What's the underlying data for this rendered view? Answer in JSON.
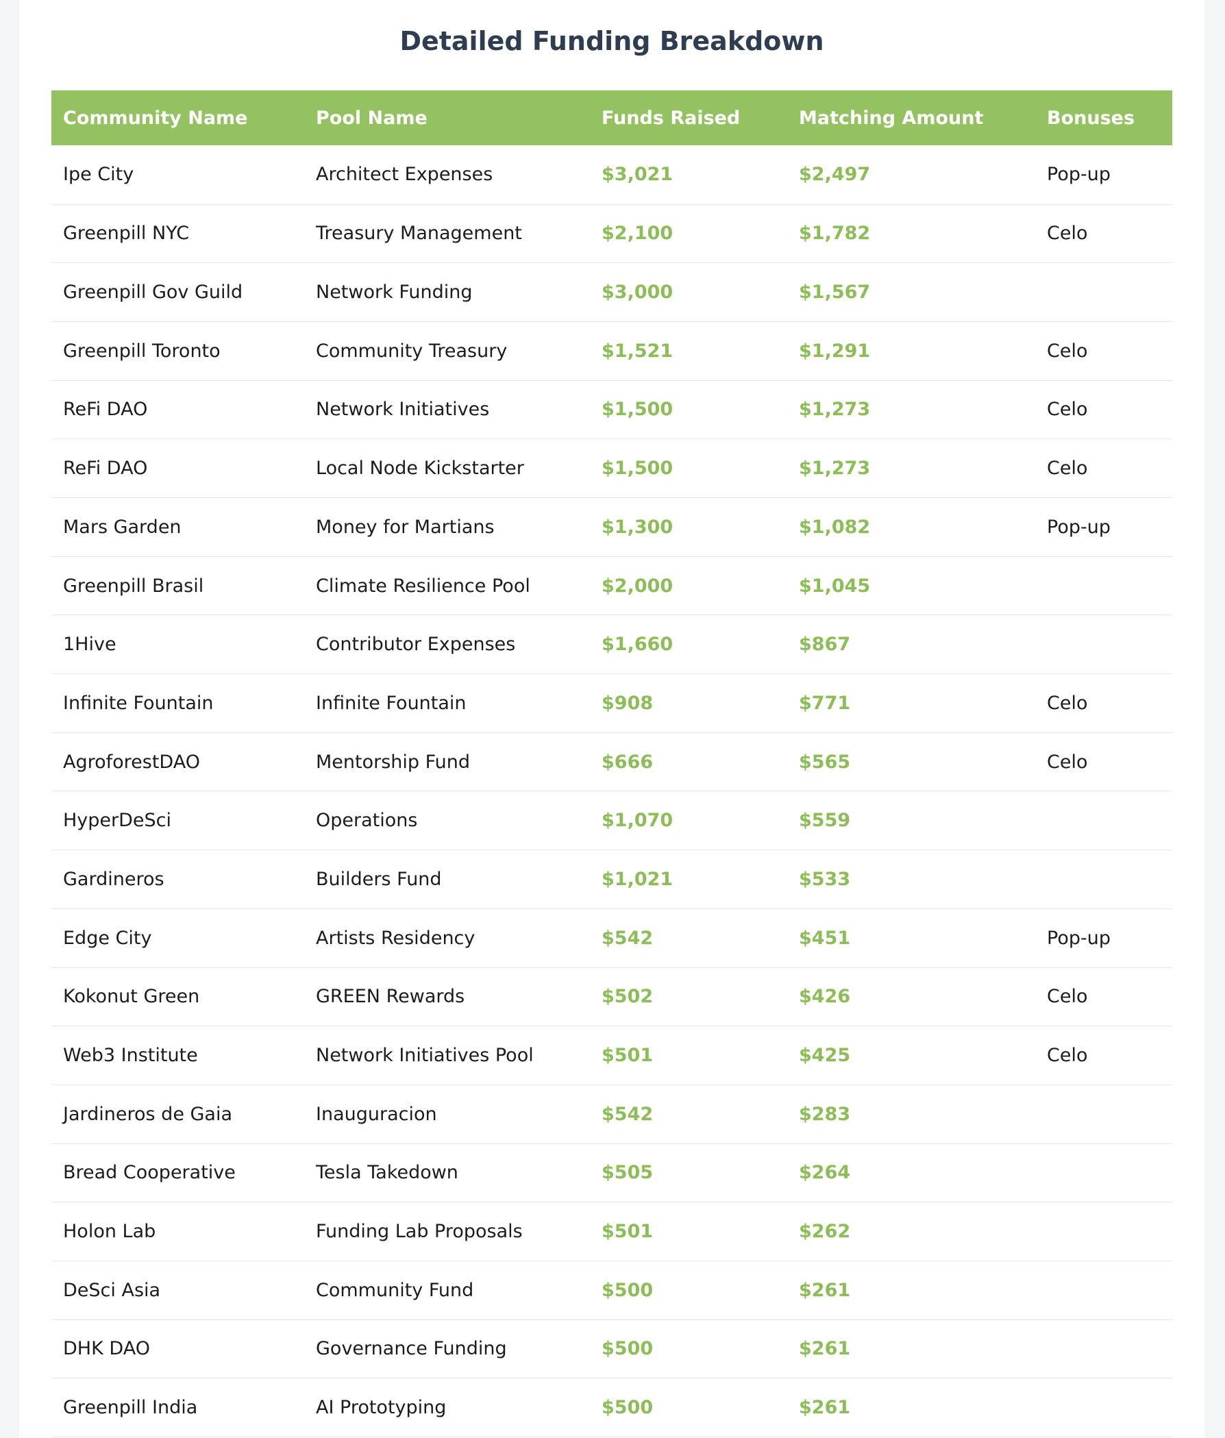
{
  "page": {
    "title": "Detailed Funding Breakdown"
  },
  "colors": {
    "header_background": "#95c261",
    "money_text": "#8cbd56",
    "title_text": "#2e3d50",
    "row_divider": "#e7e8e8",
    "page_background": "#f4f5f6"
  },
  "chart_data": {
    "type": "table",
    "title": "Detailed Funding Breakdown",
    "columns": [
      "Community Name",
      "Pool Name",
      "Funds Raised",
      "Matching Amount",
      "Bonuses"
    ],
    "rows": [
      {
        "community": "Ipe City",
        "pool": "Architect Expenses",
        "funds_raised": "$3,021",
        "matching_amount": "$2,497",
        "bonus": "Pop-up"
      },
      {
        "community": "Greenpill NYC",
        "pool": "Treasury Management",
        "funds_raised": "$2,100",
        "matching_amount": "$1,782",
        "bonus": "Celo"
      },
      {
        "community": "Greenpill Gov Guild",
        "pool": "Network Funding",
        "funds_raised": "$3,000",
        "matching_amount": "$1,567",
        "bonus": ""
      },
      {
        "community": "Greenpill Toronto",
        "pool": "Community Treasury",
        "funds_raised": "$1,521",
        "matching_amount": "$1,291",
        "bonus": "Celo"
      },
      {
        "community": "ReFi DAO",
        "pool": "Network Initiatives",
        "funds_raised": "$1,500",
        "matching_amount": "$1,273",
        "bonus": "Celo"
      },
      {
        "community": "ReFi DAO",
        "pool": "Local Node Kickstarter",
        "funds_raised": "$1,500",
        "matching_amount": "$1,273",
        "bonus": "Celo"
      },
      {
        "community": "Mars Garden",
        "pool": "Money for Martians",
        "funds_raised": "$1,300",
        "matching_amount": "$1,082",
        "bonus": "Pop-up"
      },
      {
        "community": "Greenpill Brasil",
        "pool": "Climate Resilience Pool",
        "funds_raised": "$2,000",
        "matching_amount": "$1,045",
        "bonus": ""
      },
      {
        "community": "1Hive",
        "pool": "Contributor Expenses",
        "funds_raised": "$1,660",
        "matching_amount": "$867",
        "bonus": ""
      },
      {
        "community": "Infinite Fountain",
        "pool": "Infinite Fountain",
        "funds_raised": "$908",
        "matching_amount": "$771",
        "bonus": "Celo"
      },
      {
        "community": "AgroforestDAO",
        "pool": "Mentorship Fund",
        "funds_raised": "$666",
        "matching_amount": "$565",
        "bonus": "Celo"
      },
      {
        "community": "HyperDeSci",
        "pool": "Operations",
        "funds_raised": "$1,070",
        "matching_amount": "$559",
        "bonus": ""
      },
      {
        "community": "Gardineros",
        "pool": "Builders Fund",
        "funds_raised": "$1,021",
        "matching_amount": "$533",
        "bonus": ""
      },
      {
        "community": "Edge City",
        "pool": "Artists Residency",
        "funds_raised": "$542",
        "matching_amount": "$451",
        "bonus": "Pop-up"
      },
      {
        "community": "Kokonut Green",
        "pool": "GREEN Rewards",
        "funds_raised": "$502",
        "matching_amount": "$426",
        "bonus": "Celo"
      },
      {
        "community": "Web3 Institute",
        "pool": "Network Initiatives Pool",
        "funds_raised": "$501",
        "matching_amount": "$425",
        "bonus": "Celo"
      },
      {
        "community": "Jardineros de Gaia",
        "pool": "Inauguracion",
        "funds_raised": "$542",
        "matching_amount": "$283",
        "bonus": ""
      },
      {
        "community": "Bread Cooperative",
        "pool": "Tesla Takedown",
        "funds_raised": "$505",
        "matching_amount": "$264",
        "bonus": ""
      },
      {
        "community": "Holon Lab",
        "pool": "Funding Lab Proposals",
        "funds_raised": "$501",
        "matching_amount": "$262",
        "bonus": ""
      },
      {
        "community": "DeSci Asia",
        "pool": "Community Fund",
        "funds_raised": "$500",
        "matching_amount": "$261",
        "bonus": ""
      },
      {
        "community": "DHK DAO",
        "pool": "Governance Funding",
        "funds_raised": "$500",
        "matching_amount": "$261",
        "bonus": ""
      },
      {
        "community": "Greenpill India",
        "pool": "AI Prototyping",
        "funds_raised": "$500",
        "matching_amount": "$261",
        "bonus": ""
      }
    ]
  }
}
